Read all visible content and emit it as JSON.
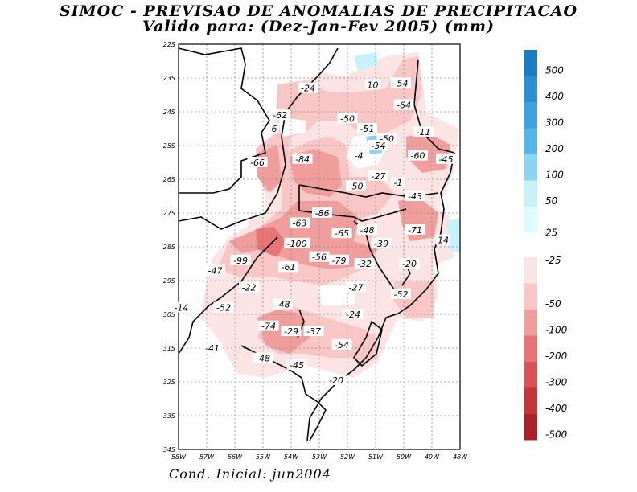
{
  "title_line1": "SIMOC - PREVISAO DE ANOMALIAS DE PRECIPITACAO",
  "title_line2": "Valido para: (Dez-Jan-Fev 2005) (mm)",
  "footer": "Cond. Inicial: jun2004",
  "map": {
    "lon_range": [
      -58,
      -48
    ],
    "lat_range": [
      -34,
      -22
    ],
    "lon_labels": [
      "58W",
      "57W",
      "56W",
      "55W",
      "54W",
      "53W",
      "52W",
      "51W",
      "50W",
      "49W",
      "48W"
    ],
    "lat_labels": [
      "22S",
      "23S",
      "24S",
      "25S",
      "26S",
      "27S",
      "28S",
      "29S",
      "30S",
      "31S",
      "32S",
      "33S",
      "34S"
    ],
    "contour_labels": [
      {
        "text": "-24",
        "lon": -53.4,
        "lat": -23.3
      },
      {
        "text": "10",
        "lon": -51.1,
        "lat": -23.2
      },
      {
        "text": "-54",
        "lon": -50.1,
        "lat": -23.15
      },
      {
        "text": "-64",
        "lon": -50.0,
        "lat": -23.8
      },
      {
        "text": "-62",
        "lon": -54.4,
        "lat": -24.1
      },
      {
        "text": "6",
        "lon": -54.6,
        "lat": -24.5
      },
      {
        "text": "-50",
        "lon": -52.0,
        "lat": -24.2
      },
      {
        "text": "-51",
        "lon": -51.3,
        "lat": -24.5
      },
      {
        "text": "-50",
        "lon": -50.6,
        "lat": -24.8
      },
      {
        "text": "-11",
        "lon": -49.3,
        "lat": -24.6
      },
      {
        "text": "-54",
        "lon": -50.9,
        "lat": -25.0
      },
      {
        "text": "-60",
        "lon": -49.5,
        "lat": -25.3
      },
      {
        "text": "-45",
        "lon": -48.5,
        "lat": -25.4
      },
      {
        "text": "-4",
        "lon": -51.6,
        "lat": -25.3
      },
      {
        "text": "-66",
        "lon": -55.2,
        "lat": -25.5
      },
      {
        "text": "-84",
        "lon": -53.6,
        "lat": -25.4
      },
      {
        "text": "-27",
        "lon": -50.9,
        "lat": -25.9
      },
      {
        "text": "-1",
        "lon": -50.2,
        "lat": -26.1
      },
      {
        "text": "-50",
        "lon": -51.7,
        "lat": -26.2
      },
      {
        "text": "-43",
        "lon": -49.6,
        "lat": -26.5
      },
      {
        "text": "-86",
        "lon": -52.9,
        "lat": -27.0
      },
      {
        "text": "-63",
        "lon": -53.7,
        "lat": -27.3
      },
      {
        "text": "-48",
        "lon": -51.3,
        "lat": -27.5
      },
      {
        "text": "-65",
        "lon": -52.2,
        "lat": -27.6
      },
      {
        "text": "-71",
        "lon": -49.6,
        "lat": -27.5
      },
      {
        "text": "14",
        "lon": -48.6,
        "lat": -27.8
      },
      {
        "text": "-100",
        "lon": -53.8,
        "lat": -27.9
      },
      {
        "text": "-39",
        "lon": -50.8,
        "lat": -27.9
      },
      {
        "text": "-99",
        "lon": -55.8,
        "lat": -28.4
      },
      {
        "text": "-56",
        "lon": -53.0,
        "lat": -28.3
      },
      {
        "text": "-79",
        "lon": -52.3,
        "lat": -28.4
      },
      {
        "text": "-61",
        "lon": -54.1,
        "lat": -28.6
      },
      {
        "text": "-32",
        "lon": -51.4,
        "lat": -28.5
      },
      {
        "text": "-20",
        "lon": -49.8,
        "lat": -28.5
      },
      {
        "text": "-47",
        "lon": -56.7,
        "lat": -28.7
      },
      {
        "text": "-22",
        "lon": -55.5,
        "lat": -29.2
      },
      {
        "text": "-27",
        "lon": -51.7,
        "lat": -29.2
      },
      {
        "text": "-52",
        "lon": -50.1,
        "lat": -29.4
      },
      {
        "text": "-48",
        "lon": -54.3,
        "lat": -29.7
      },
      {
        "text": "-14",
        "lon": -57.9,
        "lat": -29.8
      },
      {
        "text": "-52",
        "lon": -56.4,
        "lat": -29.8
      },
      {
        "text": "-24",
        "lon": -51.8,
        "lat": -30.0
      },
      {
        "text": "-74",
        "lon": -54.8,
        "lat": -30.35
      },
      {
        "text": "-29",
        "lon": -54.0,
        "lat": -30.5
      },
      {
        "text": "-37",
        "lon": -53.2,
        "lat": -30.5
      },
      {
        "text": "-54",
        "lon": -52.2,
        "lat": -30.9
      },
      {
        "text": "-41",
        "lon": -56.8,
        "lat": -31.0
      },
      {
        "text": "-48",
        "lon": -55.0,
        "lat": -31.3
      },
      {
        "text": "-45",
        "lon": -53.8,
        "lat": -31.5
      },
      {
        "text": "-20",
        "lon": -52.4,
        "lat": -31.95
      }
    ]
  },
  "legend": {
    "positive": [
      {
        "label": "500",
        "color": "#1a7cc3"
      },
      {
        "label": "400",
        "color": "#2a8fd0"
      },
      {
        "label": "300",
        "color": "#3ca2dc"
      },
      {
        "label": "200",
        "color": "#55b7e8"
      },
      {
        "label": "100",
        "color": "#8cd3f4"
      },
      {
        "label": "50",
        "color": "#c6f2fb"
      },
      {
        "label": "25",
        "color": "#e0fbfe"
      }
    ],
    "negative": [
      {
        "label": "-25",
        "color": "#fde4e4"
      },
      {
        "label": "-50",
        "color": "#f8c6c4"
      },
      {
        "label": "-100",
        "color": "#f09e9c"
      },
      {
        "label": "-200",
        "color": "#e87476"
      },
      {
        "label": "-300",
        "color": "#da5155"
      },
      {
        "label": "-400",
        "color": "#c63636"
      },
      {
        "label": "-500",
        "color": "#aa2228"
      }
    ]
  }
}
